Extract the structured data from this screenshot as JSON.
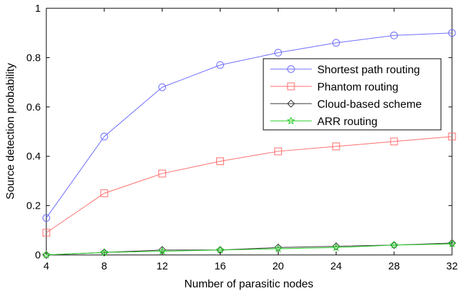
{
  "chart_data": {
    "type": "line",
    "xlabel": "Number of parasitic nodes",
    "ylabel": "Source detection probability",
    "x": [
      4,
      8,
      12,
      16,
      20,
      24,
      28,
      32
    ],
    "xticks": [
      "4",
      "8",
      "12",
      "16",
      "20",
      "24",
      "28",
      "32"
    ],
    "yticks": [
      "0",
      "0.2",
      "0.4",
      "0.6",
      "0.8",
      "1"
    ],
    "xlim": [
      4,
      32
    ],
    "ylim": [
      0,
      1
    ],
    "grid": false,
    "legend_position": "upper-right",
    "series": [
      {
        "name": "Shortest path routing",
        "color": "#6b6bff",
        "marker": "circle",
        "values": [
          0.15,
          0.48,
          0.68,
          0.77,
          0.82,
          0.86,
          0.89,
          0.9
        ]
      },
      {
        "name": "Phantom routing",
        "color": "#ff6b6b",
        "marker": "square",
        "values": [
          0.09,
          0.25,
          0.33,
          0.38,
          0.42,
          0.44,
          0.46,
          0.48
        ]
      },
      {
        "name": "Cloud-based scheme",
        "color": "#333333",
        "marker": "diamond",
        "values": [
          0.0,
          0.01,
          0.02,
          0.02,
          0.03,
          0.035,
          0.04,
          0.048
        ]
      },
      {
        "name": "ARR routing",
        "color": "#22cc22",
        "marker": "star",
        "values": [
          0.0,
          0.01,
          0.015,
          0.02,
          0.025,
          0.03,
          0.04,
          0.045
        ]
      }
    ]
  }
}
